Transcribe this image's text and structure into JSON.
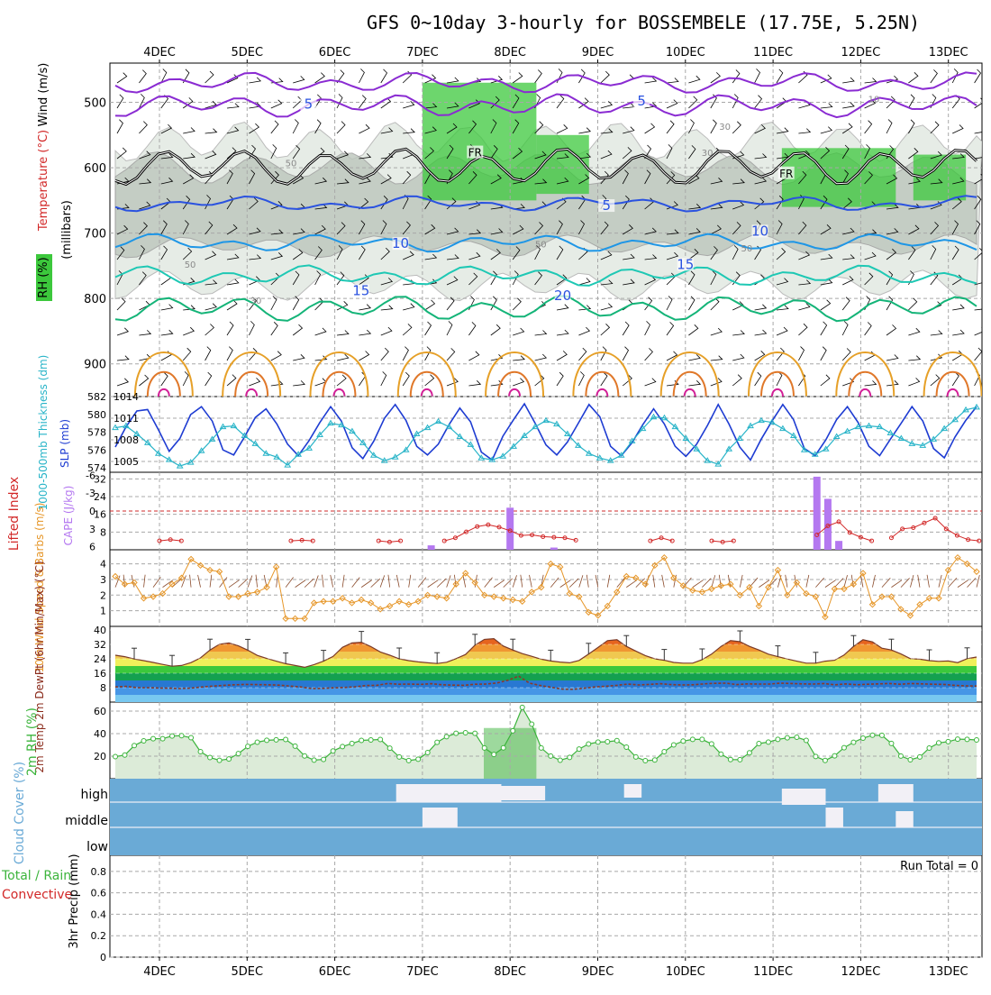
{
  "title": "GFS 0~10day 3-hourly for BOSSEMBELE (17.75E, 5.25N)",
  "colors": {
    "grid": "#a8a8a8",
    "temp_purple": "#8a2bd2",
    "temp_blue": "#2a52e0",
    "temp_lightblue": "#1e96e6",
    "temp_teal": "#1ec8b4",
    "temp_green": "#14b478",
    "temp_orange": "#e6a028",
    "temp_darkorange": "#e0782a",
    "temp_magenta": "#d21e96",
    "rh_green": "#3cc83c",
    "rh_grey": "#bcc6bc",
    "slp_blue": "#1e3cd2",
    "thick_cyan": "#28b4c8",
    "li_red": "#d22828",
    "cape_purple": "#b478f0",
    "wind_orange": "#e69628",
    "rh2m_green": "#3cb43c",
    "cloud_blue": "#6aaad6",
    "cloud_white": "#f2f0f6"
  },
  "chart_data": [
    {
      "panel": "upper-air",
      "type": "heatmap",
      "date_labels": [
        "4DEC",
        "5DEC",
        "6DEC",
        "7DEC",
        "8DEC",
        "9DEC",
        "10DEC",
        "11DEC",
        "12DEC",
        "13DEC"
      ],
      "ylabel_parts": [
        "RH (%)",
        "Temperature (°C)",
        "Wind (m/s)"
      ],
      "yunits": "(millibars)",
      "yticks": [
        500,
        600,
        700,
        800,
        900
      ],
      "ylim": [
        950,
        440
      ],
      "isotherm_labels": [
        {
          "text": "5",
          "day": 1.7,
          "p": 507
        },
        {
          "text": "5",
          "day": 5.5,
          "p": 502
        },
        {
          "text": "FR",
          "day": 3.6,
          "p": 580
        },
        {
          "text": "FR",
          "day": 7.15,
          "p": 612
        },
        {
          "text": "5",
          "day": 5.1,
          "p": 662
        },
        {
          "text": "10",
          "day": 2.75,
          "p": 720
        },
        {
          "text": "10",
          "day": 6.85,
          "p": 701
        },
        {
          "text": "15",
          "day": 2.3,
          "p": 792
        },
        {
          "text": "15",
          "day": 6.0,
          "p": 752
        },
        {
          "text": "20",
          "day": 4.6,
          "p": 800
        }
      ],
      "rh_labels": [
        {
          "text": "50",
          "day": 1.5,
          "p": 598
        },
        {
          "text": "50",
          "day": 4.35,
          "p": 722
        },
        {
          "text": "50",
          "day": 6.7,
          "p": 728
        },
        {
          "text": "50",
          "day": 0.35,
          "p": 753
        },
        {
          "text": "30",
          "day": 1.1,
          "p": 808
        },
        {
          "text": "30",
          "day": 6.25,
          "p": 582
        },
        {
          "text": "30",
          "day": 6.45,
          "p": 542
        },
        {
          "text": "10",
          "day": 8.15,
          "p": 500
        }
      ]
    },
    {
      "panel": "slp-thickness",
      "type": "line",
      "ylabel_left": "1000-500mb Thickness (dm)",
      "ylabel_right": "SLP (mb)",
      "thickness_ticks": [
        574,
        576,
        578,
        580,
        582
      ],
      "slp_ticks": [
        1005,
        1008,
        1011,
        1014
      ],
      "series": [
        {
          "name": "SLP (mb)",
          "values": [
            1007.0,
            1009.8,
            1012.0,
            1012.2,
            1009.4,
            1006.4,
            1008.2,
            1011.5,
            1012.6,
            1010.6,
            1006.6,
            1005.9,
            1008.4,
            1011.1,
            1012.3,
            1010.2,
            1007.4,
            1005.8,
            1007.9,
            1010.4,
            1012.6,
            1010.6,
            1006.9,
            1005.4,
            1007.8,
            1011.0,
            1012.9,
            1010.7,
            1007.1,
            1005.9,
            1007.4,
            1010.1,
            1012.4,
            1010.5,
            1006.3,
            1005.2,
            1008.5,
            1010.8,
            1013.0,
            1010.3,
            1007.3,
            1005.9,
            1007.7,
            1010.3,
            1012.9,
            1011.2,
            1007.1,
            1005.8,
            1007.6,
            1010.1,
            1012.3,
            1010.2,
            1007.1,
            1005.7,
            1007.4,
            1010.0,
            1012.9,
            1010.2,
            1007.0,
            1005.2,
            1008.1,
            1010.6,
            1012.9,
            1010.8,
            1006.8,
            1005.8,
            1008.0,
            1010.8,
            1012.6,
            1010.4,
            1007.1,
            1005.8,
            1008.1,
            1010.3,
            1012.6,
            1010.6,
            1006.8,
            1005.5,
            1008.4,
            1010.7,
            1012.6
          ]
        },
        {
          "name": "1000-500mb Thickness (dm)",
          "values": [
            578.5,
            578.7,
            577.8,
            576.8,
            575.6,
            574.9,
            574.2,
            574.6,
            575.9,
            577.2,
            578.6,
            578.7,
            577.6,
            576.7,
            575.6,
            575.2,
            574.3,
            575.5,
            576.2,
            577.7,
            579.0,
            578.8,
            578.1,
            576.8,
            575.4,
            574.8,
            575.2,
            576.0,
            577.8,
            578.5,
            579.2,
            578.6,
            577.5,
            576.6,
            575.1,
            574.9,
            575.3,
            576.4,
            577.6,
            578.6,
            579.3,
            578.9,
            577.8,
            576.5,
            575.6,
            575.1,
            574.8,
            575.4,
            577.0,
            578.4,
            579.7,
            579.6,
            578.6,
            577.3,
            576.1,
            574.8,
            574.4,
            576.1,
            577.3,
            578.7,
            579.3,
            579.1,
            578.4,
            577.6,
            576.0,
            575.5,
            576.1,
            577.5,
            578.1,
            578.6,
            578.7,
            578.6,
            577.9,
            577.3,
            576.7,
            576.5,
            577.2,
            578.4,
            579.4,
            580.5,
            580.8
          ]
        }
      ]
    },
    {
      "panel": "lifted-cape",
      "type": "bar",
      "ylabel_left": "Lifted Index",
      "ylabel_right": "CAPE (J/kg)",
      "li_ticks": [
        6,
        3,
        0,
        -3,
        -6
      ],
      "cape_ticks": [
        8,
        16,
        24,
        32
      ],
      "series": [
        {
          "name": "Lifted Index",
          "segments": [
            {
              "start": 0.0,
              "values": [
                5.0,
                4.8,
                5.0
              ]
            },
            {
              "start": 1.5,
              "values": [
                5.0,
                4.9,
                5.0
              ]
            },
            {
              "start": 2.5,
              "values": [
                5.0,
                5.2,
                5.0
              ]
            },
            {
              "start": 3.25,
              "values": [
                5.0,
                4.5,
                3.5,
                2.6,
                2.3,
                2.7,
                3.3,
                4.1,
                4.0,
                4.3,
                4.4,
                4.5,
                4.9
              ]
            },
            {
              "start": 5.6,
              "values": [
                5.0,
                4.5,
                5.0
              ]
            },
            {
              "start": 6.3,
              "values": [
                5.0,
                5.2,
                5.0
              ]
            },
            {
              "start": 7.5,
              "values": [
                4.0,
                2.5,
                1.8,
                3.6,
                4.4,
                5.0
              ]
            },
            {
              "start": 8.35,
              "values": [
                4.5,
                3.0,
                2.8,
                2.0,
                1.2,
                3.0,
                4.1,
                4.8,
                5.0
              ]
            }
          ]
        },
        {
          "name": "CAPE (J/kg)",
          "bars": [
            {
              "day": 4.0,
              "value": 19
            },
            {
              "day": 7.5,
              "value": 33
            },
            {
              "day": 7.625,
              "value": 23
            },
            {
              "day": 7.75,
              "value": 4
            },
            {
              "day": 3.1,
              "value": 2
            },
            {
              "day": 4.5,
              "value": 1
            }
          ]
        }
      ]
    },
    {
      "panel": "10m-wind",
      "type": "line",
      "ylabel": "10m Wind Speed & Barbs (m/s)",
      "yticks": [
        1,
        2,
        3,
        4
      ],
      "series": [
        {
          "name": "10m Wind Speed",
          "values": [
            3.2,
            2.7,
            2.8,
            1.8,
            1.9,
            2.1,
            2.7,
            3.1,
            4.3,
            3.9,
            3.6,
            3.5,
            1.9,
            1.9,
            2.1,
            2.2,
            2.5,
            3.8,
            0.5,
            0.5,
            0.5,
            1.5,
            1.6,
            1.6,
            1.8,
            1.5,
            1.7,
            1.5,
            1.1,
            1.3,
            1.6,
            1.4,
            1.6,
            2.0,
            1.9,
            1.8,
            2.7,
            3.4,
            2.8,
            2.0,
            1.9,
            1.8,
            1.7,
            1.6,
            2.2,
            2.5,
            4.0,
            3.8,
            2.1,
            1.9,
            0.9,
            0.7,
            1.3,
            2.2,
            3.2,
            3.1,
            2.7,
            3.9,
            4.4,
            3.1,
            2.6,
            2.3,
            2.2,
            2.4,
            2.6,
            2.7,
            2.0,
            2.5,
            1.3,
            2.5,
            3.6,
            2.0,
            2.8,
            2.1,
            1.9,
            0.6,
            2.4,
            2.4,
            2.7,
            3.4,
            1.4,
            1.9,
            1.9,
            1.1,
            0.7,
            1.4,
            1.8,
            1.8,
            3.6,
            4.4,
            4.0,
            3.5
          ]
        }
      ]
    },
    {
      "panel": "2m-temp",
      "type": "area",
      "ylabel": "2m Temp 2m DewPt (6hr Min/Max) (°C)",
      "yticks": [
        8,
        16,
        24,
        32,
        40
      ],
      "series": [
        {
          "name": "2m Temp",
          "values": [
            26.0,
            25.2,
            23.9,
            23.0,
            22.0,
            20.9,
            19.9,
            20.3,
            21.9,
            24.5,
            28.9,
            32.1,
            32.8,
            31.2,
            28.8,
            25.9,
            24.2,
            22.7,
            21.3,
            20.3,
            19.3,
            20.8,
            22.7,
            25.3,
            30.4,
            32.8,
            33.2,
            30.8,
            27.8,
            26.0,
            24.0,
            23.0,
            22.3,
            21.8,
            21.4,
            22.1,
            24.1,
            26.4,
            31.6,
            34.8,
            35.2,
            31.1,
            28.9,
            26.9,
            25.4,
            23.8,
            22.8,
            22.2,
            21.8,
            23.1,
            26.6,
            30.3,
            34.1,
            34.6,
            30.9,
            28.3,
            25.8,
            24.0,
            23.2,
            22.0,
            21.6,
            21.6,
            23.5,
            26.6,
            30.9,
            34.1,
            33.5,
            30.9,
            28.9,
            26.6,
            25.2,
            23.9,
            22.7,
            21.6,
            21.6,
            22.7,
            23.2,
            26.1,
            30.9,
            34.6,
            33.4,
            29.9,
            28.9,
            26.7,
            24.1,
            23.8,
            23.0,
            22.6,
            22.8,
            21.9,
            24.1,
            25.0
          ]
        },
        {
          "name": "2m DewPt",
          "values": [
            8.4,
            8.7,
            8.0,
            8.0,
            7.8,
            7.7,
            7.5,
            7.8,
            8.4,
            8.9,
            9.3,
            9.6,
            9.8,
            9.7,
            9.6,
            9.4,
            8.9,
            8.4,
            7.5,
            7.6,
            7.9,
            8.1,
            8.5,
            9.2,
            9.3,
            10.3,
            9.9,
            10.0,
            9.8,
            10.2,
            9.6,
            9.4,
            9.3,
            9.9,
            10.0,
            10.6,
            12.1,
            14.4,
            10.5,
            9.2,
            8.2,
            7.2,
            7.1,
            7.7,
            8.4,
            8.8,
            9.3,
            10.0,
            9.5,
            9.8,
            10.2,
            9.7,
            9.5,
            9.6,
            10.1,
            10.4,
            10.5,
            9.7,
            10.1,
            10.0,
            10.0,
            10.5,
            10.3,
            10.1,
            10.0,
            10.3,
            9.6,
            10.1,
            9.6,
            9.9,
            10.1,
            10.3,
            9.9,
            10.3,
            10.1,
            9.9,
            9.8,
            9.3,
            9.0,
            8.9
          ]
        }
      ]
    },
    {
      "panel": "2m-rh",
      "type": "area",
      "ylabel": "2m RH (%)",
      "yticks": [
        20,
        40,
        60
      ],
      "series": [
        {
          "name": "2m RH",
          "values": [
            19.6,
            21.0,
            29.4,
            33.6,
            35.5,
            35.5,
            37.9,
            38.2,
            36.4,
            24.0,
            18.8,
            16.3,
            17.5,
            22.3,
            28.7,
            32.4,
            34.1,
            34.5,
            34.8,
            28.9,
            20.2,
            16.5,
            17.1,
            24.6,
            28.5,
            31.3,
            34.0,
            34.4,
            34.8,
            27.1,
            19.3,
            16.1,
            17.3,
            23.2,
            32.3,
            37.3,
            40.3,
            40.8,
            40.3,
            27.3,
            21.5,
            27.4,
            42.5,
            63.3,
            48.4,
            27.3,
            20.1,
            16.4,
            18.9,
            26.3,
            30.8,
            32.5,
            32.8,
            33.8,
            28.0,
            19.3,
            16.0,
            16.6,
            24.0,
            30.0,
            33.4,
            34.9,
            34.9,
            30.9,
            21.8,
            17.0,
            16.9,
            23.0,
            31.2,
            32.5,
            34.9,
            36.3,
            36.8,
            34.0,
            19.7,
            16.2,
            20.3,
            27.5,
            32.3,
            36.0,
            38.6,
            38.5,
            31.3,
            20.1,
            16.8,
            19.3,
            27.2,
            31.8,
            32.9,
            35.1,
            34.9,
            34.4
          ]
        }
      ]
    },
    {
      "panel": "cloud-cover",
      "type": "heatmap",
      "ylabel": "Cloud Cover (%)",
      "levels": [
        "high",
        "middle",
        "low"
      ]
    },
    {
      "panel": "precip",
      "type": "bar",
      "ylabel_parts": [
        "Total / Rain",
        "Convective"
      ],
      "ylabel_main": "3hr Precip (mm)",
      "yticks": [
        "0",
        "0.2",
        "0.4",
        "0.6",
        "0.8"
      ],
      "run_total": "Run Total = 0",
      "values": []
    }
  ]
}
